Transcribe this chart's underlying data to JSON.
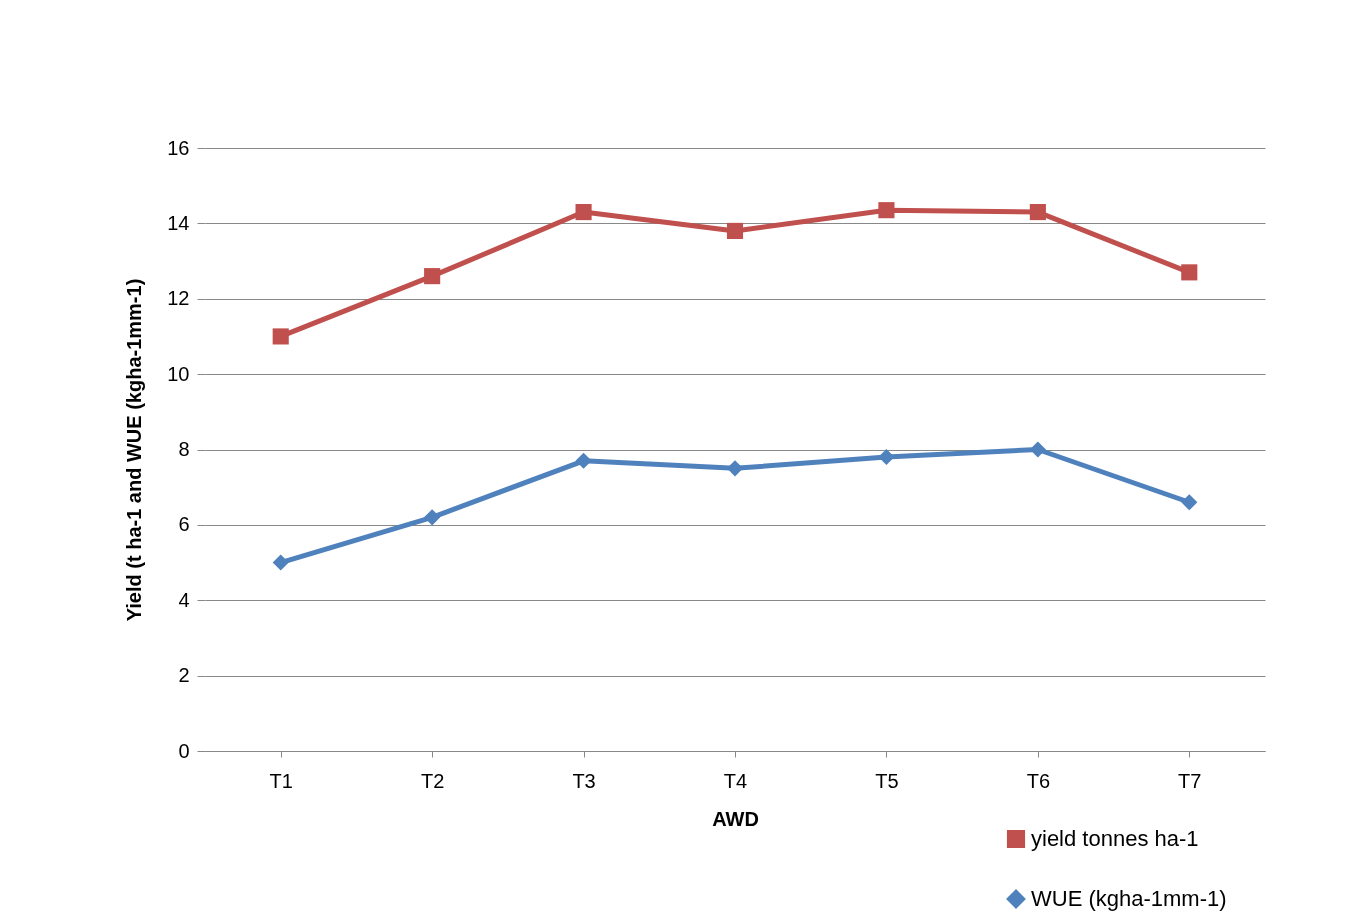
{
  "chart_data": {
    "type": "line",
    "xlabel": "AWD",
    "ylabel": "Yield (t ha-1 and WUE (kgha-1mm-1)",
    "categories": [
      "T1",
      "T2",
      "T3",
      "T4",
      "T5",
      "T6",
      "T7"
    ],
    "series": [
      {
        "name": "yield tonnes ha-1",
        "color": "#c0504d",
        "marker": "square",
        "values": [
          11.0,
          12.6,
          14.3,
          13.8,
          14.35,
          14.3,
          12.7
        ]
      },
      {
        "name": "WUE (kgha-1mm-1)",
        "color": "#4f81bd",
        "marker": "diamond",
        "values": [
          5.0,
          6.2,
          7.7,
          7.5,
          7.8,
          8.0,
          6.6
        ]
      }
    ],
    "ylim": [
      0,
      16
    ],
    "yticks": [
      0,
      2,
      4,
      6,
      8,
      10,
      12,
      14,
      16
    ],
    "grid": "y",
    "legend": "bottom right"
  }
}
